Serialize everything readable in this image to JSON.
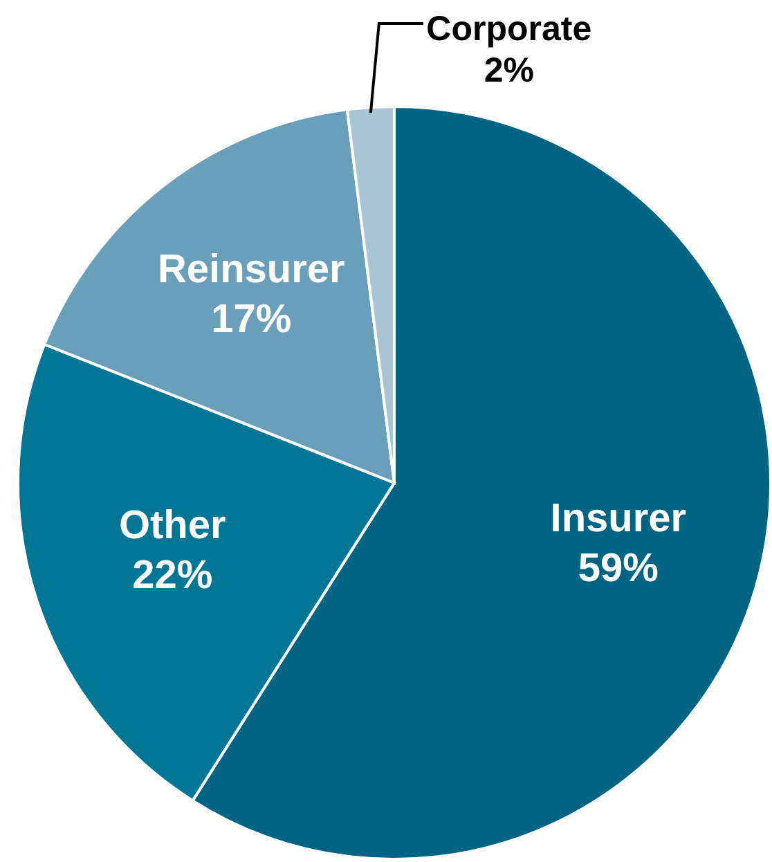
{
  "chart_data": {
    "type": "pie",
    "categories": [
      "Insurer",
      "Other",
      "Reinsurer",
      "Corporate"
    ],
    "values": [
      59,
      22,
      17,
      2
    ],
    "colors": [
      "#006482",
      "#007697",
      "#6a9fba",
      "#a9c4d3"
    ],
    "value_labels": [
      "59%",
      "22%",
      "17%",
      "2%"
    ],
    "legend": false
  }
}
